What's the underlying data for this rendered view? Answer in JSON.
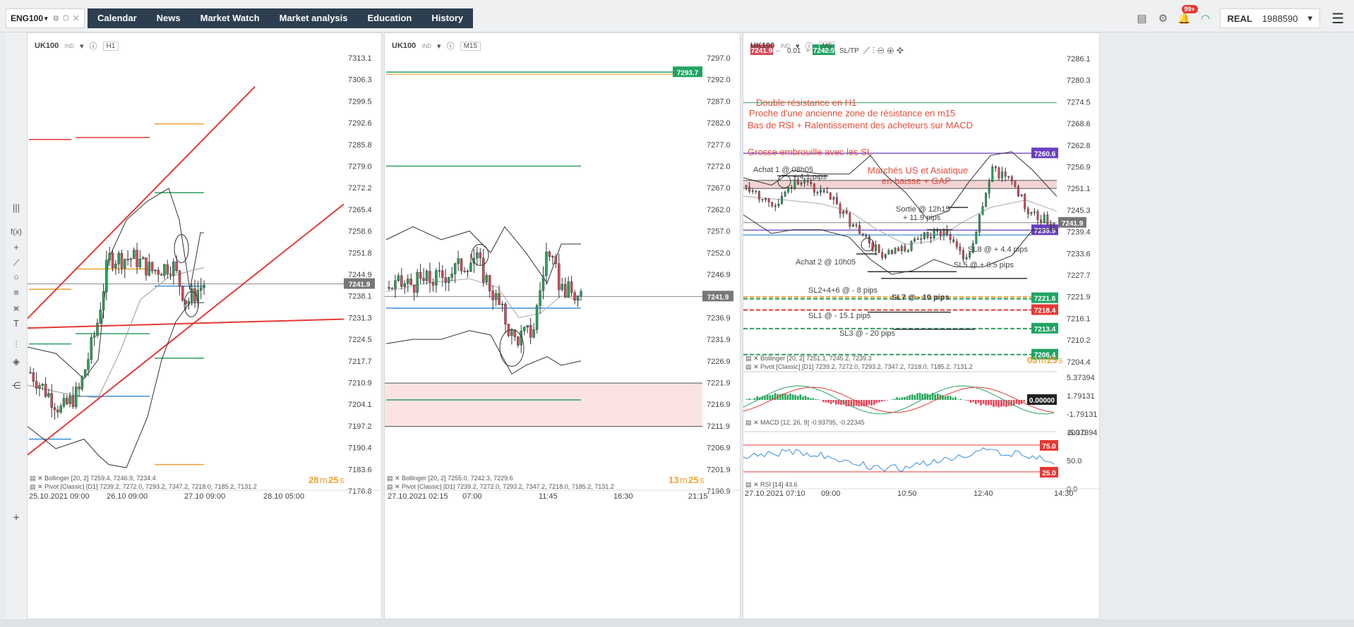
{
  "symbol_tab": {
    "label": "ENG100"
  },
  "menu": [
    "Calendar",
    "News",
    "Market Watch",
    "Market analysis",
    "Education",
    "History"
  ],
  "topright": {
    "badge": "99+",
    "account_type": "REAL",
    "account_number": "1988590"
  },
  "panels": [
    {
      "symbol": "UK100",
      "sub": "IND",
      "timeframe": "H1",
      "price_axis": [
        "7313.1",
        "7306.3",
        "7299.5",
        "7292.6",
        "7285.8",
        "7279.0",
        "7272.2",
        "7265.4",
        "7258.6",
        "7251.8",
        "7244.9",
        "7238.1",
        "7231.3",
        "7224.5",
        "7217.7",
        "7210.9",
        "7204.1",
        "7197.2",
        "7190.4",
        "7183.6",
        "7176.8"
      ],
      "current_price": "7241.9",
      "time_axis": [
        "25.10.2021 09:00",
        "26.10 09:00",
        "27.10 09:00",
        "28.10 05:00"
      ],
      "indicators": [
        "Bollinger [20, 2] 7259.4, 7246.9, 7234.4",
        "Pivot [Classic] [D1] 7239.2, 7272.0, 7293.2, 7347.2, 7218.0, 7185.2, 7131.2"
      ],
      "countdown": {
        "m": "28",
        "s": "25"
      }
    },
    {
      "symbol": "UK100",
      "sub": "IND",
      "timeframe": "M15",
      "price_axis": [
        "7297.0",
        "7292.0",
        "7287.0",
        "7282.0",
        "7277.0",
        "7272.0",
        "7267.0",
        "7262.0",
        "7257.0",
        "7252.0",
        "7246.9",
        "7241.9",
        "7236.9",
        "7231.9",
        "7226.9",
        "7221.9",
        "7216.9",
        "7211.9",
        "7206.9",
        "7201.9",
        "7196.9"
      ],
      "current_price": "7241.9",
      "tag_price": "7293.7",
      "time_axis": [
        "27.10.2021 02:15",
        "07:00",
        "11:45",
        "16:30",
        "21:15"
      ],
      "indicators": [
        "Bollinger [20, 2] 7255.0, 7242.3, 7229.6",
        "Pivot [Classic] [D1] 7239.2, 7272.0, 7293.2, 7347.2, 7218.0, 7185.2, 7131.2"
      ],
      "countdown": {
        "m": "13",
        "s": "25"
      }
    },
    {
      "symbol": "UK100",
      "sub": "IND",
      "timeframe": "M5",
      "trade": {
        "sell": "7241.9",
        "volume": "0.01",
        "buy": "7242.5",
        "sltp": "SL/TP"
      },
      "price_axis": [
        "7286.1",
        "7280.3",
        "7274.5",
        "7268.6",
        "7262.8",
        "7256.9",
        "7251.1",
        "7245.3",
        "7239.4",
        "7233.6",
        "7227.7",
        "7221.9",
        "7216.1",
        "7210.2",
        "7204.4"
      ],
      "price_tags": {
        "purple_top": "7260.6",
        "current": "7241.9",
        "purple_low": "7239.9",
        "green1": "7221.6",
        "red": "7218.4",
        "green2": "7213.4",
        "green3": "7206.4"
      },
      "annotations": {
        "a1": "Double résistance en H1",
        "a2": "Proche d'une ancienne zone de résistance en m15",
        "a3": "Bas de RSI + Ralentissement des acheteurs sur MACD",
        "a4": "Grosse embrouille avec les SL",
        "a5": "Marchés US et Asiatique",
        "a6": "en baisse + GAP",
        "achat1": "Achat 1 @ 08h05",
        "pips41": "+ 4.1 pips",
        "sortie": "Sortie @ 12h15",
        "pips119": "+ 11.9 pips",
        "sl8": "SL8 @ + 4.4 pips",
        "sl5": "SL5 @ + 0.5 pips",
        "achat2": "Achat 2 @ 10h05",
        "sl246": "SL2+4+6 @ - 8 pips",
        "sl7": "SL7 @ - 10 pips",
        "sl1": "SL1 @ - 15.1 pips",
        "sl3": "SL3 @ - 20 pips"
      },
      "indicators": [
        "Bollinger [20, 2] 7251.1, 7245.2, 7239.3",
        "Pivot [Classic] [D1] 7239.2, 7272.0, 7293.2, 7347.2, 7218.0, 7185.2, 7131.2"
      ],
      "countdown": {
        "m": "03",
        "s": "25"
      },
      "macd": {
        "label": "MACD [12, 26, 9] -0.93795, -0.22345",
        "axis": [
          "5.37394",
          "1.79131",
          "-1.79131",
          "-5.37394"
        ],
        "tag": "0.00000"
      },
      "rsi": {
        "label": "RSI [14] 43.6",
        "axis": [
          "100.0",
          "50.0",
          "0.0"
        ],
        "tag_high": "75.0",
        "tag_low": "25.0"
      },
      "time_axis": [
        "27.10.2021 07:10",
        "09:00",
        "10:50",
        "12:40",
        "14:30"
      ]
    }
  ],
  "colors": {
    "menu_bg": "#2c3e50",
    "bull": "#26a65b",
    "bear": "#e0475b",
    "trend": "#e53935",
    "annotation": "#e74c3c",
    "purple": "#6a3fc2",
    "pivot_green": "#2e9e62",
    "pivot_blue": "#3a8fd9",
    "pivot_orange": "#f0a030"
  }
}
